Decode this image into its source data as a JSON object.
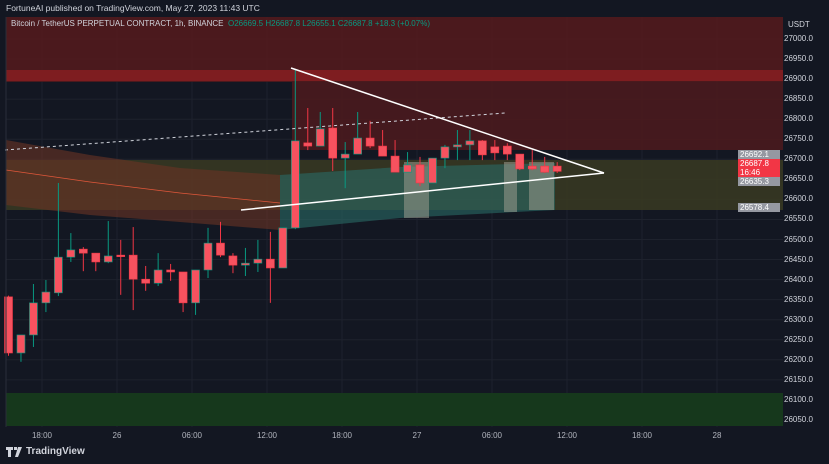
{
  "publisher": "FortuneAI published on TradingView.com, May 27, 2023 11:43 UTC",
  "legend": {
    "symbol": "Bitcoin / TetherUS PERPETUAL CONTRACT, 1h, BINANCE",
    "open": "O26669.5",
    "high": "H26687.8",
    "low": "L26655.1",
    "close": "C26687.8",
    "change": "+18.3 (+0.07%)"
  },
  "currency": "USDT",
  "price_axis": [
    "27000.0",
    "26950.0",
    "26900.0",
    "26850.0",
    "26800.0",
    "26750.0",
    "26700.0",
    "26650.0",
    "26600.0",
    "26550.0",
    "26500.0",
    "26450.0",
    "26400.0",
    "26350.0",
    "26300.0",
    "26250.0",
    "26200.0",
    "26150.0",
    "26100.0",
    "26050.0"
  ],
  "time_axis": [
    "18:00",
    "26",
    "06:00",
    "12:00",
    "18:00",
    "27",
    "06:00",
    "12:00",
    "18:00",
    "28"
  ],
  "price_tags": [
    {
      "text": "26692.1",
      "bg": "#9598a1",
      "fg": "#ffffff"
    },
    {
      "text": "26687.8",
      "bg": "#f23645",
      "fg": "#ffffff"
    },
    {
      "text": "16:46",
      "bg": "#f23645",
      "fg": "#ffffff"
    },
    {
      "text": "26635.3",
      "bg": "#9598a1",
      "fg": "#ffffff"
    },
    {
      "text": "26578.4",
      "bg": "#9598a1",
      "fg": "#ffffff"
    }
  ],
  "footer": {
    "brand": "TradingView",
    "logo_icon": "tradingview-logo-icon"
  },
  "colors": {
    "up": "#089981",
    "down": "#f23645",
    "body": "#f7525f",
    "background": "#131722"
  },
  "candles": [
    [
      26357,
      26360,
      26210,
      26217
    ],
    [
      26217,
      26262,
      26195,
      26262
    ],
    [
      26262,
      26389,
      26232,
      26342
    ],
    [
      26342,
      26399,
      26319,
      26369
    ],
    [
      26367,
      26641,
      26359,
      26456
    ],
    [
      26456,
      26516,
      26444,
      26474
    ],
    [
      26476,
      26481,
      26421,
      26466
    ],
    [
      26466,
      26466,
      26421,
      26444
    ],
    [
      26444,
      26546,
      26441,
      26459
    ],
    [
      26461,
      26499,
      26362,
      26459
    ],
    [
      26461,
      26531,
      26324,
      26401
    ],
    [
      26401,
      26434,
      26372,
      26391
    ],
    [
      26391,
      26466,
      26384,
      26424
    ],
    [
      26424,
      26439,
      26397,
      26419
    ],
    [
      26419,
      26419,
      26319,
      26342
    ],
    [
      26342,
      26424,
      26312,
      26424
    ],
    [
      26424,
      26529,
      26404,
      26491
    ],
    [
      26491,
      26544,
      26456,
      26461
    ],
    [
      26459,
      26466,
      26416,
      26436
    ],
    [
      26436,
      26479,
      26409,
      26441
    ],
    [
      26441,
      26499,
      26419,
      26451
    ],
    [
      26451,
      26519,
      26342,
      26429
    ],
    [
      26429,
      26529,
      26429,
      26529
    ],
    [
      26529,
      26923,
      26526,
      26746
    ],
    [
      26741,
      26828,
      26723,
      26733
    ],
    [
      26733,
      26818,
      26733,
      26776
    ],
    [
      26778,
      26828,
      26671,
      26703
    ],
    [
      26703,
      26743,
      26628,
      26713
    ],
    [
      26713,
      26818,
      26713,
      26753
    ],
    [
      26753,
      26796,
      26728,
      26733
    ],
    [
      26733,
      26773,
      26708,
      26708
    ],
    [
      26708,
      26748,
      26668,
      26668
    ],
    [
      26668,
      26718,
      26668,
      26686
    ],
    [
      26686,
      26706,
      26633,
      26641
    ],
    [
      26641,
      26703,
      26641,
      26703
    ],
    [
      26703,
      26736,
      26678,
      26731
    ],
    [
      26731,
      26773,
      26698,
      26736
    ],
    [
      26736,
      26773,
      26698,
      26746
    ],
    [
      26746,
      26748,
      26698,
      26711
    ],
    [
      26731,
      26748,
      26698,
      26716
    ],
    [
      26733,
      26740,
      26698,
      26713
    ],
    [
      26713,
      26713,
      26673,
      26676
    ],
    [
      26683,
      26723,
      26673,
      26676
    ],
    [
      26683,
      26706,
      26666,
      26668
    ],
    [
      26683,
      26693,
      26666,
      26670
    ]
  ]
}
